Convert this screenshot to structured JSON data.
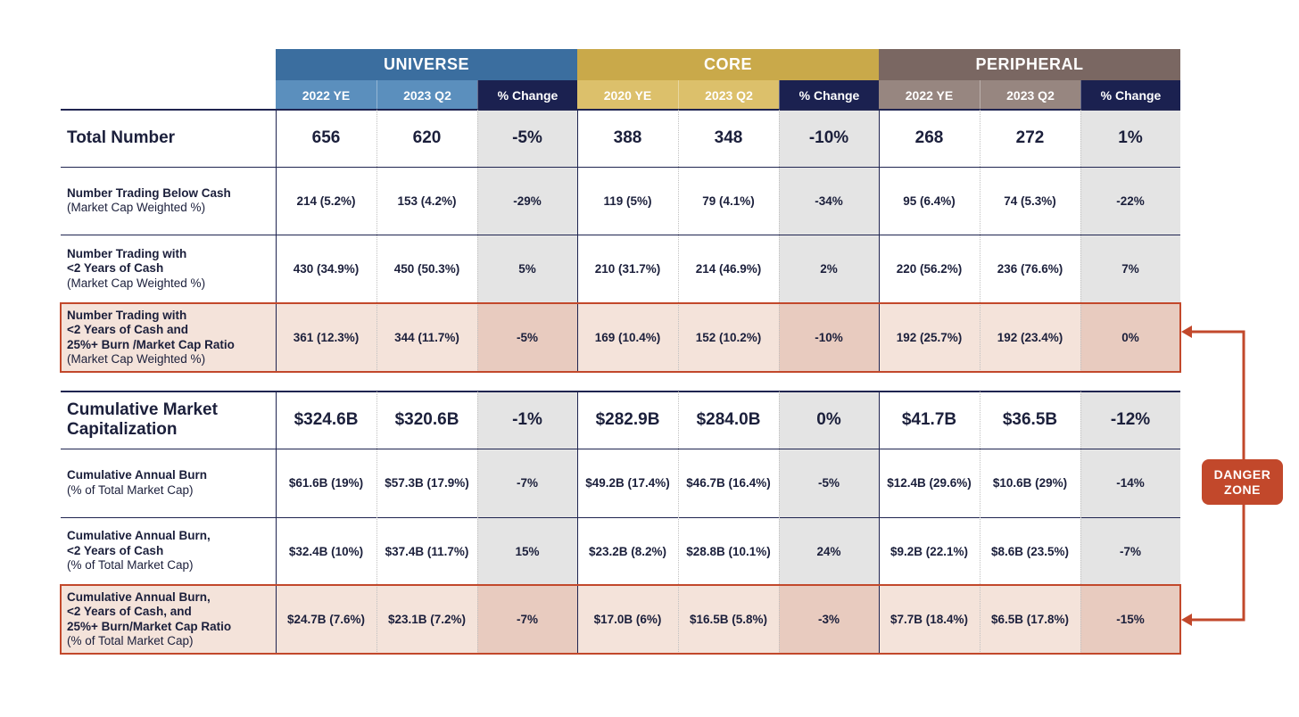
{
  "groups": [
    {
      "name": "UNIVERSE",
      "color": "#3b6e9f",
      "sub_color": "#5b8fbd",
      "cols": [
        "2022 YE",
        "2023 Q2",
        "% Change"
      ]
    },
    {
      "name": "CORE",
      "color": "#c9a94a",
      "sub_color": "#dcc06b",
      "cols": [
        "2020 YE",
        "2023 Q2",
        "% Change"
      ]
    },
    {
      "name": "PERIPHERAL",
      "color": "#7a6762",
      "sub_color": "#978680",
      "cols": [
        "2022 YE",
        "2023 Q2",
        "% Change"
      ]
    }
  ],
  "change_header_color": "#1b2150",
  "rows": [
    {
      "label": "Total Number",
      "sub": "",
      "style": "big",
      "highlight": false,
      "values": [
        "656",
        "620",
        "-5%",
        "388",
        "348",
        "-10%",
        "268",
        "272",
        "1%"
      ]
    },
    {
      "label": "Number Trading Below Cash",
      "sub": "(Market Cap Weighted %)",
      "style": "normal",
      "highlight": false,
      "values": [
        "214 (5.2%)",
        "153 (4.2%)",
        "-29%",
        "119 (5%)",
        "79 (4.1%)",
        "-34%",
        "95 (6.4%)",
        "74 (5.3%)",
        "-22%"
      ]
    },
    {
      "label": "Number Trading with\n<2 Years of Cash",
      "sub": "(Market Cap Weighted %)",
      "style": "normal",
      "highlight": false,
      "values": [
        "430 (34.9%)",
        "450 (50.3%)",
        "5%",
        "210 (31.7%)",
        "214 (46.9%)",
        "2%",
        "220 (56.2%)",
        "236 (76.6%)",
        "7%"
      ]
    },
    {
      "label": "Number Trading with\n<2 Years of Cash and\n25%+ Burn /Market Cap Ratio",
      "sub": "(Market Cap Weighted %)",
      "style": "normal",
      "highlight": true,
      "values": [
        "361 (12.3%)",
        "344 (11.7%)",
        "-5%",
        "169 (10.4%)",
        "152 (10.2%)",
        "-10%",
        "192 (25.7%)",
        "192 (23.4%)",
        "0%"
      ]
    },
    {
      "label": "Cumulative Market\nCapitalization",
      "sub": "",
      "style": "big",
      "highlight": false,
      "values": [
        "$324.6B",
        "$320.6B",
        "-1%",
        "$282.9B",
        "$284.0B",
        "0%",
        "$41.7B",
        "$36.5B",
        "-12%"
      ]
    },
    {
      "label": "Cumulative Annual Burn",
      "sub": "(% of Total Market Cap)",
      "style": "normal",
      "highlight": false,
      "values": [
        "$61.6B (19%)",
        "$57.3B (17.9%)",
        "-7%",
        "$49.2B (17.4%)",
        "$46.7B (16.4%)",
        "-5%",
        "$12.4B (29.6%)",
        "$10.6B (29%)",
        "-14%"
      ]
    },
    {
      "label": "Cumulative Annual Burn,\n<2 Years of Cash",
      "sub": "(% of Total Market Cap)",
      "style": "normal",
      "highlight": false,
      "values": [
        "$32.4B (10%)",
        "$37.4B (11.7%)",
        "15%",
        "$23.2B (8.2%)",
        "$28.8B (10.1%)",
        "24%",
        "$9.2B (22.1%)",
        "$8.6B (23.5%)",
        "-7%"
      ]
    },
    {
      "label": "Cumulative Annual Burn,\n<2 Years of Cash, and\n25%+ Burn/Market Cap Ratio",
      "sub": "(% of Total Market Cap)",
      "style": "normal",
      "highlight": true,
      "values": [
        "$24.7B (7.6%)",
        "$23.1B (7.2%)",
        "-7%",
        "$17.0B (6%)",
        "$16.5B (5.8%)",
        "-3%",
        "$7.7B (18.4%)",
        "$6.5B (17.8%)",
        "-15%"
      ]
    }
  ],
  "danger_zone": {
    "label": "DANGER\nZONE",
    "color": "#c2482b"
  },
  "colors": {
    "change_bg": "#e4e4e4",
    "highlight_bg": "#f4e3da",
    "highlight_change_bg": "#e8cbbf",
    "text": "#1b1f3b"
  }
}
